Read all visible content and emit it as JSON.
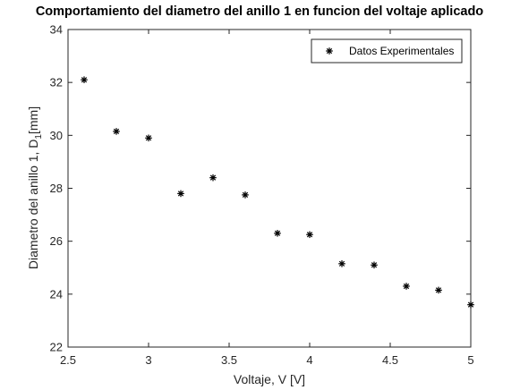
{
  "chart_data": {
    "type": "scatter",
    "title": "Comportamiento del diametro del anillo 1 en funcion del voltaje aplicado",
    "xlabel": "Voltaje, V [V]",
    "ylabel_main": "Diametro del anillo 1, D",
    "ylabel_sub": "1",
    "ylabel_unit": "[mm]",
    "xlim": [
      2.5,
      5
    ],
    "ylim": [
      22,
      34
    ],
    "xticks": [
      2.5,
      3,
      3.5,
      4,
      4.5,
      5
    ],
    "xtick_labels": [
      "2.5",
      "3",
      "3.5",
      "4",
      "4.5",
      "5"
    ],
    "yticks": [
      22,
      24,
      26,
      28,
      30,
      32,
      34
    ],
    "ytick_labels": [
      "22",
      "24",
      "26",
      "28",
      "30",
      "32",
      "34"
    ],
    "grid": false,
    "legend_position": "top-right",
    "marker": "asterisk",
    "series": [
      {
        "name": "Datos Experimentales",
        "x": [
          2.6,
          2.8,
          3.0,
          3.2,
          3.4,
          3.6,
          3.8,
          4.0,
          4.2,
          4.4,
          4.6,
          4.8,
          5.0
        ],
        "y": [
          32.1,
          30.15,
          29.9,
          27.8,
          28.4,
          27.75,
          26.3,
          26.25,
          25.15,
          25.1,
          24.3,
          24.15,
          23.6
        ]
      }
    ]
  }
}
